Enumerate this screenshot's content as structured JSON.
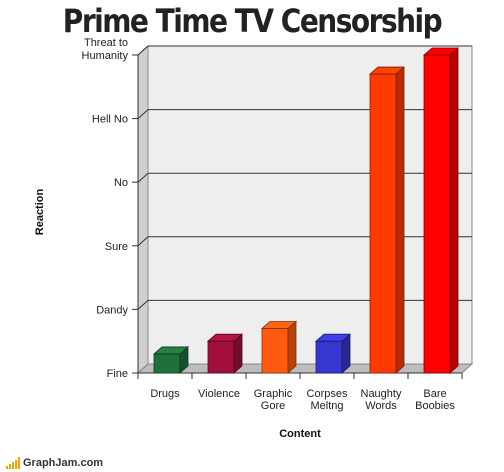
{
  "chart_data": {
    "type": "bar",
    "title": "Prime Time TV Censorship",
    "xlabel": "Content",
    "ylabel": "Reaction",
    "categories": [
      [
        "Drugs"
      ],
      [
        "Violence"
      ],
      [
        "Graphic",
        "Gore"
      ],
      [
        "Corpses",
        "Meltng"
      ],
      [
        "Naughty",
        "Words"
      ],
      [
        "Bare",
        "Boobies"
      ]
    ],
    "values": [
      0.3,
      0.5,
      0.7,
      0.5,
      4.7,
      5.0
    ],
    "colors": [
      "#1f6f3a",
      "#a0103a",
      "#ff5a10",
      "#3636d0",
      "#ff3a00",
      "#ff0000"
    ],
    "y_ticks": [
      [
        "Fine"
      ],
      [
        "Dandy"
      ],
      [
        "Sure"
      ],
      [
        "No"
      ],
      [
        "Hell No"
      ],
      [
        "Threat to",
        "Humanity"
      ]
    ],
    "ylim": [
      0,
      5
    ],
    "grid": true,
    "legend": "none"
  },
  "footer": {
    "brand": "GraphJam.com"
  }
}
